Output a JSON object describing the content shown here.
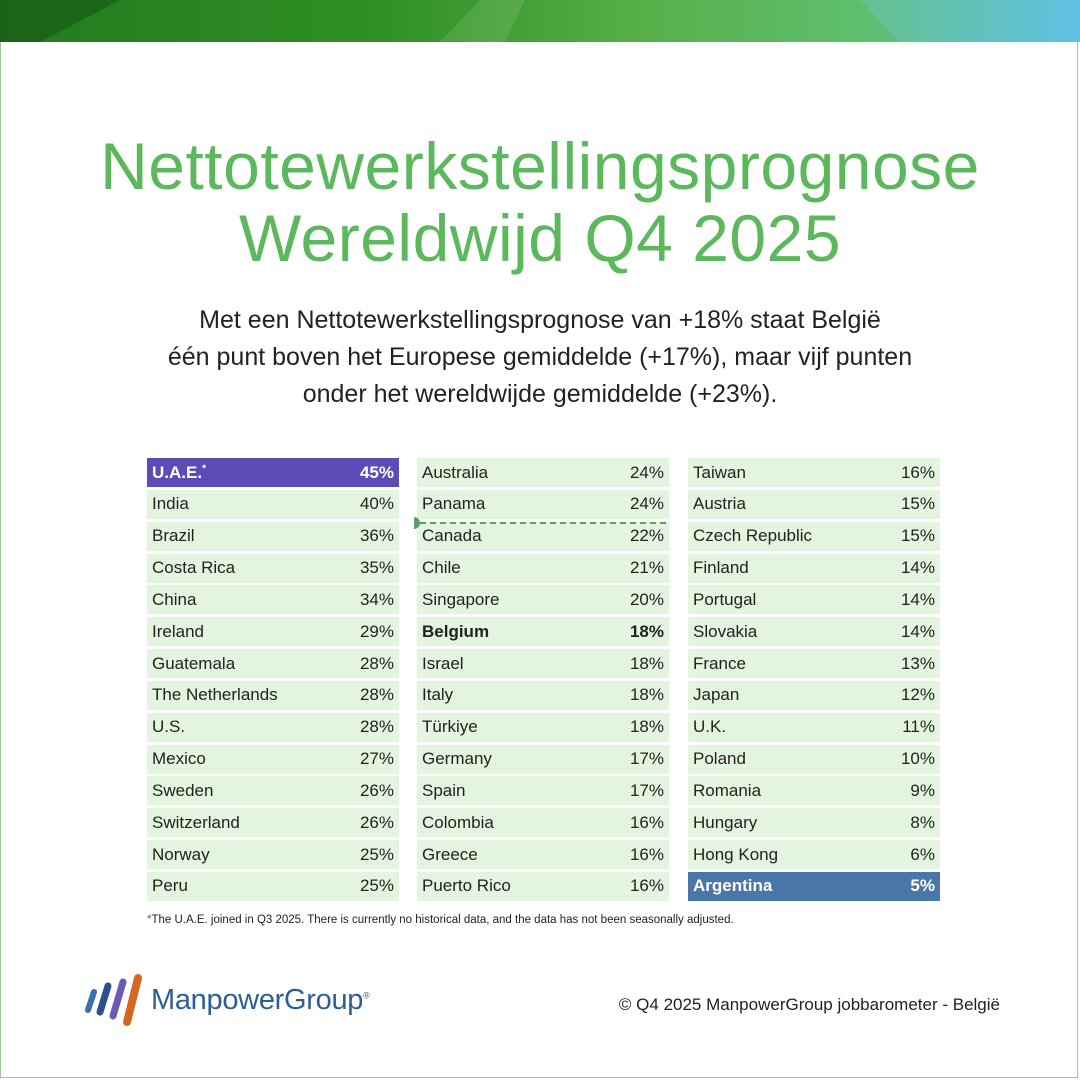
{
  "title_line1": "Nettotewerkstellingsprognose",
  "title_line2": "Wereldwijd Q4 2025",
  "subtitle_lines": [
    "Met een Nettotewerkstellingsprognose van +18% staat België",
    "één punt boven het Europese gemiddelde (+17%), maar vijf punten",
    "onder het wereldwijde gemiddelde (+23%)."
  ],
  "colors": {
    "title": "#5cb85c",
    "row_bg": "#e3f5df",
    "highest": "#5b4cb8",
    "lowest": "#4a76a8",
    "average_line": "#5f9e68"
  },
  "chart_data": {
    "type": "table",
    "columns": [
      [
        {
          "name": "U.A.E.",
          "marker": "*",
          "value": "45%",
          "style": "highest"
        },
        {
          "name": "India",
          "value": "40%"
        },
        {
          "name": "Brazil",
          "value": "36%"
        },
        {
          "name": "Costa Rica",
          "value": "35%"
        },
        {
          "name": "China",
          "value": "34%"
        },
        {
          "name": "Ireland",
          "value": "29%"
        },
        {
          "name": "Guatemala",
          "value": "28%"
        },
        {
          "name": "The Netherlands",
          "value": "28%"
        },
        {
          "name": "U.S.",
          "value": "28%"
        },
        {
          "name": "Mexico",
          "value": "27%"
        },
        {
          "name": "Sweden",
          "value": "26%"
        },
        {
          "name": "Switzerland",
          "value": "26%"
        },
        {
          "name": "Norway",
          "value": "25%"
        },
        {
          "name": "Peru",
          "value": "25%"
        }
      ],
      [
        {
          "name": "Australia",
          "value": "24%"
        },
        {
          "name": "Panama",
          "value": "24%"
        },
        {
          "name": "Canada",
          "value": "22%"
        },
        {
          "name": "Chile",
          "value": "21%"
        },
        {
          "name": "Singapore",
          "value": "20%"
        },
        {
          "name": "Belgium",
          "value": "18%",
          "style": "bold"
        },
        {
          "name": "Israel",
          "value": "18%"
        },
        {
          "name": "Italy",
          "value": "18%"
        },
        {
          "name": "Türkiye",
          "value": "18%"
        },
        {
          "name": "Germany",
          "value": "17%"
        },
        {
          "name": "Spain",
          "value": "17%"
        },
        {
          "name": "Colombia",
          "value": "16%"
        },
        {
          "name": "Greece",
          "value": "16%"
        },
        {
          "name": "Puerto Rico",
          "value": "16%"
        }
      ],
      [
        {
          "name": "Taiwan",
          "value": "16%"
        },
        {
          "name": "Austria",
          "value": "15%"
        },
        {
          "name": "Czech Republic",
          "value": "15%"
        },
        {
          "name": "Finland",
          "value": "14%"
        },
        {
          "name": "Portugal",
          "value": "14%"
        },
        {
          "name": "Slovakia",
          "value": "14%"
        },
        {
          "name": "France",
          "value": "13%"
        },
        {
          "name": "Japan",
          "value": "12%"
        },
        {
          "name": "U.K.",
          "value": "11%"
        },
        {
          "name": "Poland",
          "value": "10%"
        },
        {
          "name": "Romania",
          "value": "9%"
        },
        {
          "name": "Hungary",
          "value": "8%"
        },
        {
          "name": "Hong Kong",
          "value": "6%"
        },
        {
          "name": "Argentina",
          "value": "5%",
          "style": "lowest"
        }
      ]
    ],
    "global_average_marker": {
      "after_column": 2,
      "after_row": 2
    }
  },
  "footnote_marker": "*",
  "footnote": "The U.A.E. joined in Q3 2025. There is currently no historical data, and the data has not been seasonally adjusted.",
  "logo_text": "ManpowerGroup",
  "logo_mark": "®",
  "copyright": "© Q4 2025 ManpowerGroup jobbarometer - België"
}
